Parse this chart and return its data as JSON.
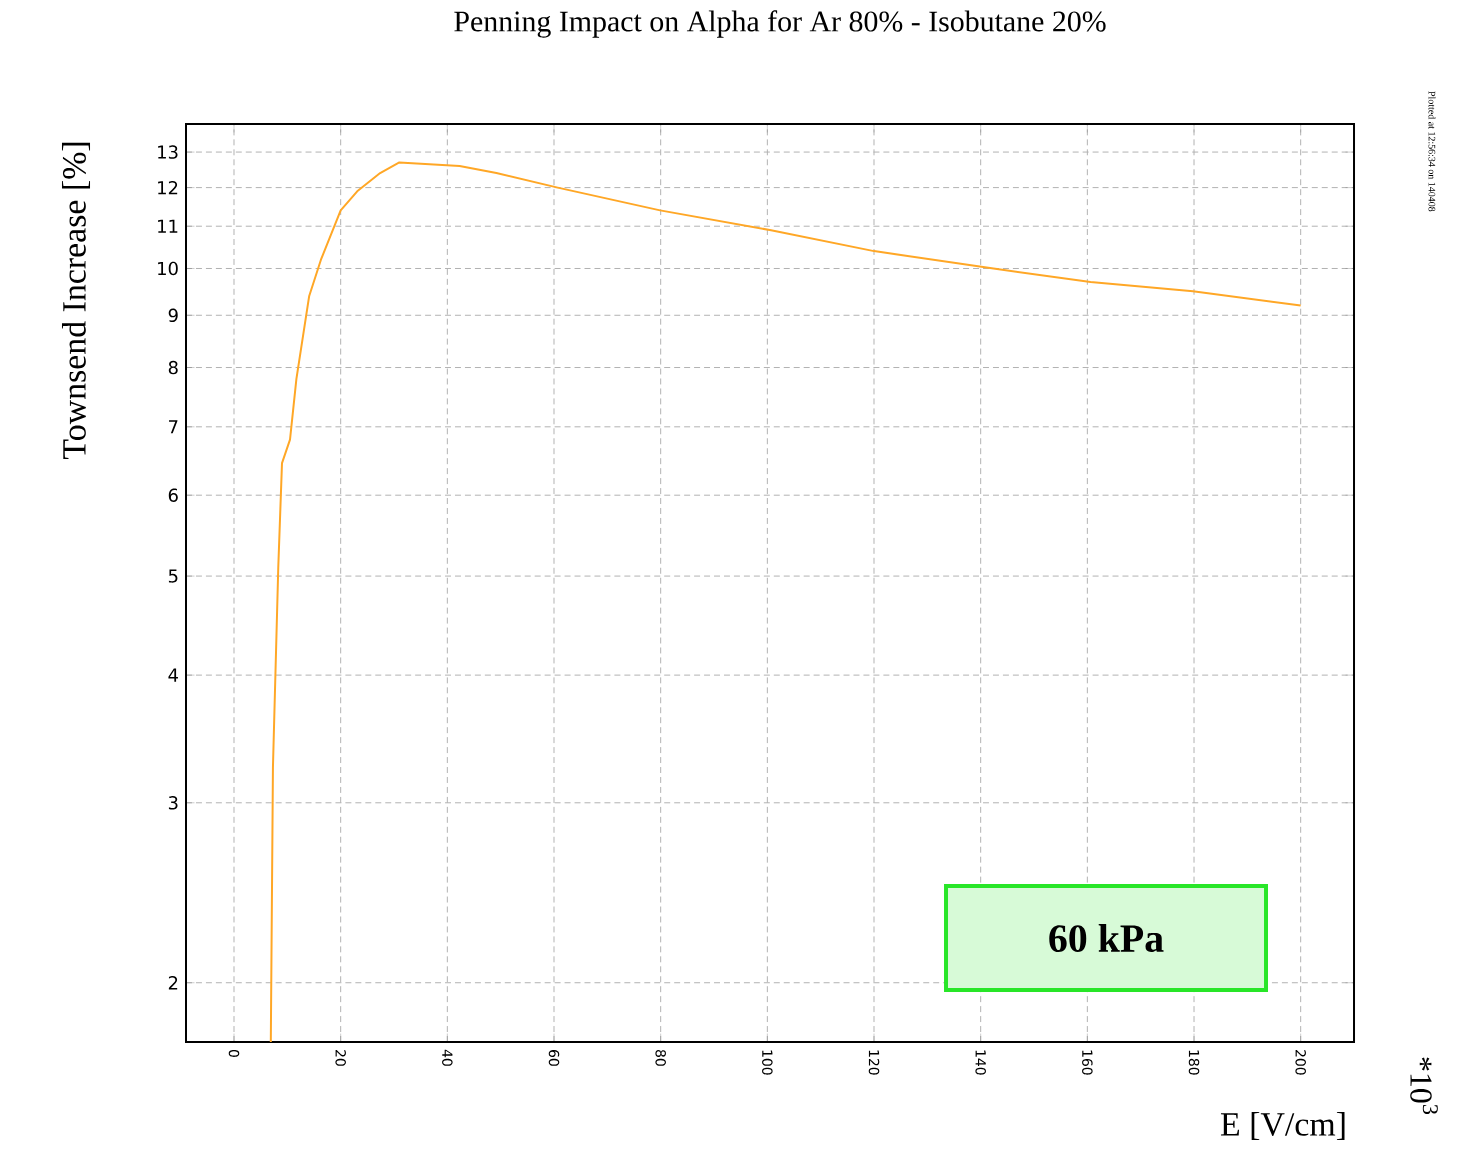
{
  "chart_data": {
    "type": "line",
    "title": "Penning Impact on Alpha for Ar 80% - Isobutane 20%",
    "xlabel": "E [V/cm]",
    "ylabel": "Townsend Increase [%]",
    "annotations": [
      "60 kPa",
      "*10$^{3}$",
      "Plotted at 12:56:34 on 140408"
    ],
    "x": [
      6.9,
      7.3,
      8.3,
      9.0,
      10.5,
      11.7,
      14.1,
      16.3,
      20,
      23.1,
      27.4,
      31,
      42.3,
      49.2,
      60.7,
      79.9,
      100.7,
      120,
      142.4,
      160.6,
      179.8,
      200
    ],
    "series": [
      {
        "color": "#ffa726",
        "values": [
          1.75,
          3.25,
          5.1,
          6.45,
          6.8,
          7.8,
          9.4,
          10.2,
          11.4,
          11.9,
          12.4,
          12.7,
          12.6,
          12.4,
          12.0,
          11.4,
          10.9,
          10.4,
          10.0,
          9.7,
          9.5,
          9.2
        ]
      }
    ],
    "xlim": [
      -9,
      210
    ],
    "ylim": [
      1.75,
      13.85
    ],
    "xticks": [
      0,
      20,
      40,
      60,
      80,
      100,
      120,
      140,
      160,
      180,
      200
    ],
    "yticks": [
      2,
      3,
      4,
      5,
      6,
      7,
      8,
      9,
      10,
      11,
      12,
      13
    ],
    "log": "y",
    "grid": true,
    "marker": "none",
    "line_style": "solid"
  }
}
